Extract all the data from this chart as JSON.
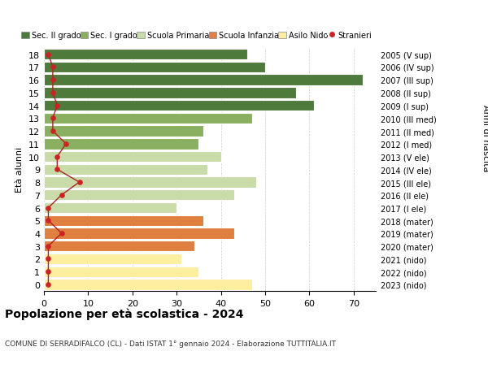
{
  "ages": [
    0,
    1,
    2,
    3,
    4,
    5,
    6,
    7,
    8,
    9,
    10,
    11,
    12,
    13,
    14,
    15,
    16,
    17,
    18
  ],
  "years_labels": [
    "2023 (nido)",
    "2022 (nido)",
    "2021 (nido)",
    "2020 (mater)",
    "2019 (mater)",
    "2018 (mater)",
    "2017 (I ele)",
    "2016 (II ele)",
    "2015 (III ele)",
    "2014 (IV ele)",
    "2013 (V ele)",
    "2012 (I med)",
    "2011 (II med)",
    "2010 (III med)",
    "2009 (I sup)",
    "2008 (II sup)",
    "2007 (III sup)",
    "2006 (IV sup)",
    "2005 (V sup)"
  ],
  "bar_values": [
    47,
    35,
    31,
    34,
    43,
    36,
    30,
    43,
    48,
    37,
    40,
    35,
    36,
    47,
    61,
    57,
    72,
    50,
    46
  ],
  "bar_colors": [
    "#FDEEA0",
    "#FDEEA0",
    "#FDEEA0",
    "#E08040",
    "#E08040",
    "#E08040",
    "#C8DBA8",
    "#C8DBA8",
    "#C8DBA8",
    "#C8DBA8",
    "#C8DBA8",
    "#8AAF60",
    "#8AAF60",
    "#8AAF60",
    "#4E7A3C",
    "#4E7A3C",
    "#4E7A3C",
    "#4E7A3C",
    "#4E7A3C"
  ],
  "stranieri_values": [
    1,
    1,
    1,
    1,
    4,
    1,
    1,
    4,
    8,
    3,
    3,
    5,
    2,
    2,
    3,
    2,
    2,
    2,
    1
  ],
  "xlim": [
    0,
    75
  ],
  "xticks": [
    0,
    10,
    20,
    30,
    40,
    50,
    60,
    70
  ],
  "ylabel_left": "Età alunni",
  "ylabel_right": "Anni di nascita",
  "title": "Popolazione per età scolastica - 2024",
  "subtitle": "COMUNE DI SERRADIFALCO (CL) - Dati ISTAT 1° gennaio 2024 - Elaborazione TUTTITALIA.IT",
  "legend_labels": [
    "Sec. II grado",
    "Sec. I grado",
    "Scuola Primaria",
    "Scuola Infanzia",
    "Asilo Nido",
    "Stranieri"
  ],
  "legend_colors": [
    "#4E7A3C",
    "#8AAF60",
    "#C8DBA8",
    "#E08040",
    "#FDEEA0",
    "#CC2222"
  ],
  "grid_color": "#CCCCCC",
  "bar_edge_color": "#FFFFFF",
  "stranieri_color": "#CC2222",
  "line_color": "#AA2222",
  "bg_color": "#FFFFFF"
}
